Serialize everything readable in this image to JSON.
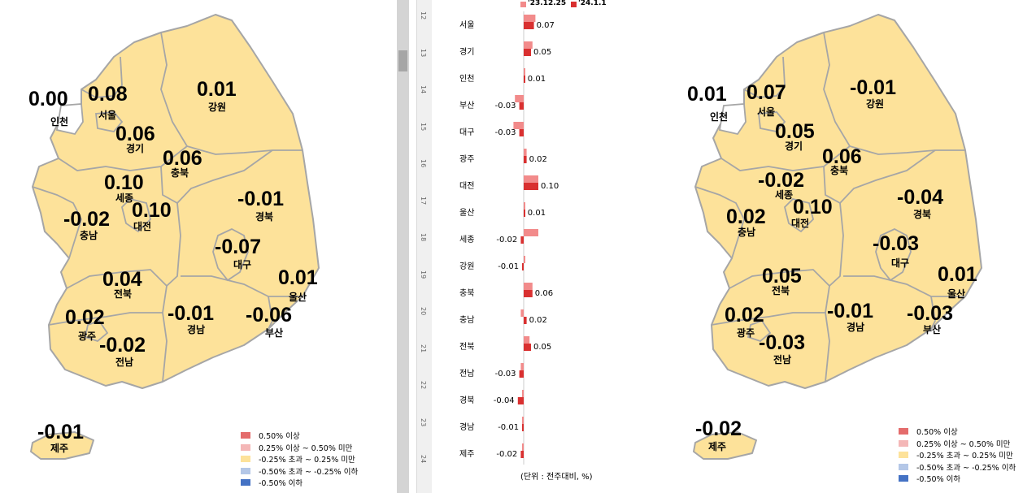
{
  "colors": {
    "fill": "#fde29a",
    "stroke": "#a6a6a6",
    "series_prev": "#f28b8b",
    "series_curr": "#d93030"
  },
  "left_map": {
    "regions": [
      {
        "id": "incheon",
        "name": "인천",
        "value": "0.00"
      },
      {
        "id": "seoul",
        "name": "서울",
        "value": "0.08"
      },
      {
        "id": "gyeonggi",
        "name": "경기",
        "value": "0.06"
      },
      {
        "id": "gangwon",
        "name": "강원",
        "value": "0.01"
      },
      {
        "id": "chungbuk",
        "name": "충북",
        "value": "0.06"
      },
      {
        "id": "sejong",
        "name": "세종",
        "value": "0.10"
      },
      {
        "id": "chungnam",
        "name": "충남",
        "value": "-0.02"
      },
      {
        "id": "daejeon",
        "name": "대전",
        "value": "0.10"
      },
      {
        "id": "gyeongbuk",
        "name": "경북",
        "value": "-0.01"
      },
      {
        "id": "daegu",
        "name": "대구",
        "value": "-0.07"
      },
      {
        "id": "ulsan",
        "name": "울산",
        "value": "0.01"
      },
      {
        "id": "jeonbuk",
        "name": "전북",
        "value": "0.04"
      },
      {
        "id": "gwangju",
        "name": "광주",
        "value": "0.02"
      },
      {
        "id": "jeonnam",
        "name": "전남",
        "value": "-0.02"
      },
      {
        "id": "gyeongnam",
        "name": "경남",
        "value": "-0.01"
      },
      {
        "id": "busan",
        "name": "부산",
        "value": "-0.06"
      },
      {
        "id": "jeju",
        "name": "제주",
        "value": "-0.01"
      }
    ]
  },
  "right_map": {
    "regions": [
      {
        "id": "incheon",
        "name": "인천",
        "value": "0.01"
      },
      {
        "id": "seoul",
        "name": "서울",
        "value": "0.07"
      },
      {
        "id": "gyeonggi",
        "name": "경기",
        "value": "0.05"
      },
      {
        "id": "gangwon",
        "name": "강원",
        "value": "-0.01"
      },
      {
        "id": "chungbuk",
        "name": "충북",
        "value": "0.06"
      },
      {
        "id": "sejong",
        "name": "세종",
        "value": "-0.02"
      },
      {
        "id": "chungnam",
        "name": "충남",
        "value": "0.02"
      },
      {
        "id": "daejeon",
        "name": "대전",
        "value": "0.10"
      },
      {
        "id": "gyeongbuk",
        "name": "경북",
        "value": "-0.04"
      },
      {
        "id": "daegu",
        "name": "대구",
        "value": "-0.03"
      },
      {
        "id": "ulsan",
        "name": "울산",
        "value": "0.01"
      },
      {
        "id": "jeonbuk",
        "name": "전북",
        "value": "0.05"
      },
      {
        "id": "gwangju",
        "name": "광주",
        "value": "0.02"
      },
      {
        "id": "jeonnam",
        "name": "전남",
        "value": "-0.03"
      },
      {
        "id": "gyeongnam",
        "name": "경남",
        "value": "-0.01"
      },
      {
        "id": "busan",
        "name": "부산",
        "value": "-0.03"
      },
      {
        "id": "jeju",
        "name": "제주",
        "value": "-0.02"
      }
    ]
  },
  "legend": [
    {
      "label": "0.50% 이상",
      "color": "#e46c6c"
    },
    {
      "label": "0.25% 이상 ~ 0.50% 미만",
      "color": "#f4b7b7"
    },
    {
      "label": "-0.25% 초과 ~ 0.25% 미만",
      "color": "#fde29a"
    },
    {
      "label": "-0.50% 초과 ~ -0.25% 이하",
      "color": "#b4c7e7"
    },
    {
      "label": "-0.50% 이하",
      "color": "#4472c4"
    }
  ],
  "ruler_ticks": [
    "12",
    "13",
    "14",
    "15",
    "16",
    "17",
    "18",
    "19",
    "20",
    "21",
    "22",
    "23",
    "24"
  ],
  "chart_data": {
    "type": "bar",
    "orientation": "horizontal",
    "categories": [
      "서울",
      "경기",
      "인천",
      "부산",
      "대구",
      "광주",
      "대전",
      "울산",
      "세종",
      "강원",
      "충북",
      "충남",
      "전북",
      "전남",
      "경북",
      "경남",
      "제주"
    ],
    "series": [
      {
        "name": "'23.12.25",
        "values": [
          0.08,
          0.06,
          0.0,
          -0.06,
          -0.07,
          0.02,
          0.1,
          0.01,
          0.1,
          0.01,
          0.06,
          -0.02,
          0.04,
          -0.02,
          -0.01,
          -0.01,
          -0.01
        ]
      },
      {
        "name": "'24.1.1",
        "values": [
          0.07,
          0.05,
          0.01,
          -0.03,
          -0.03,
          0.02,
          0.1,
          0.01,
          -0.02,
          -0.01,
          0.06,
          0.02,
          0.05,
          -0.03,
          -0.04,
          -0.01,
          -0.02
        ]
      }
    ],
    "value_labels": [
      "0.07",
      "0.05",
      "0.01",
      "-0.03",
      "-0.03",
      "0.02",
      "0.10",
      "0.01",
      "-0.02",
      "-0.01",
      "0.06",
      "0.02",
      "0.05",
      "-0.03",
      "-0.04",
      "-0.01",
      "-0.02"
    ],
    "footnote": "(단위 : 전주대비, %)"
  }
}
